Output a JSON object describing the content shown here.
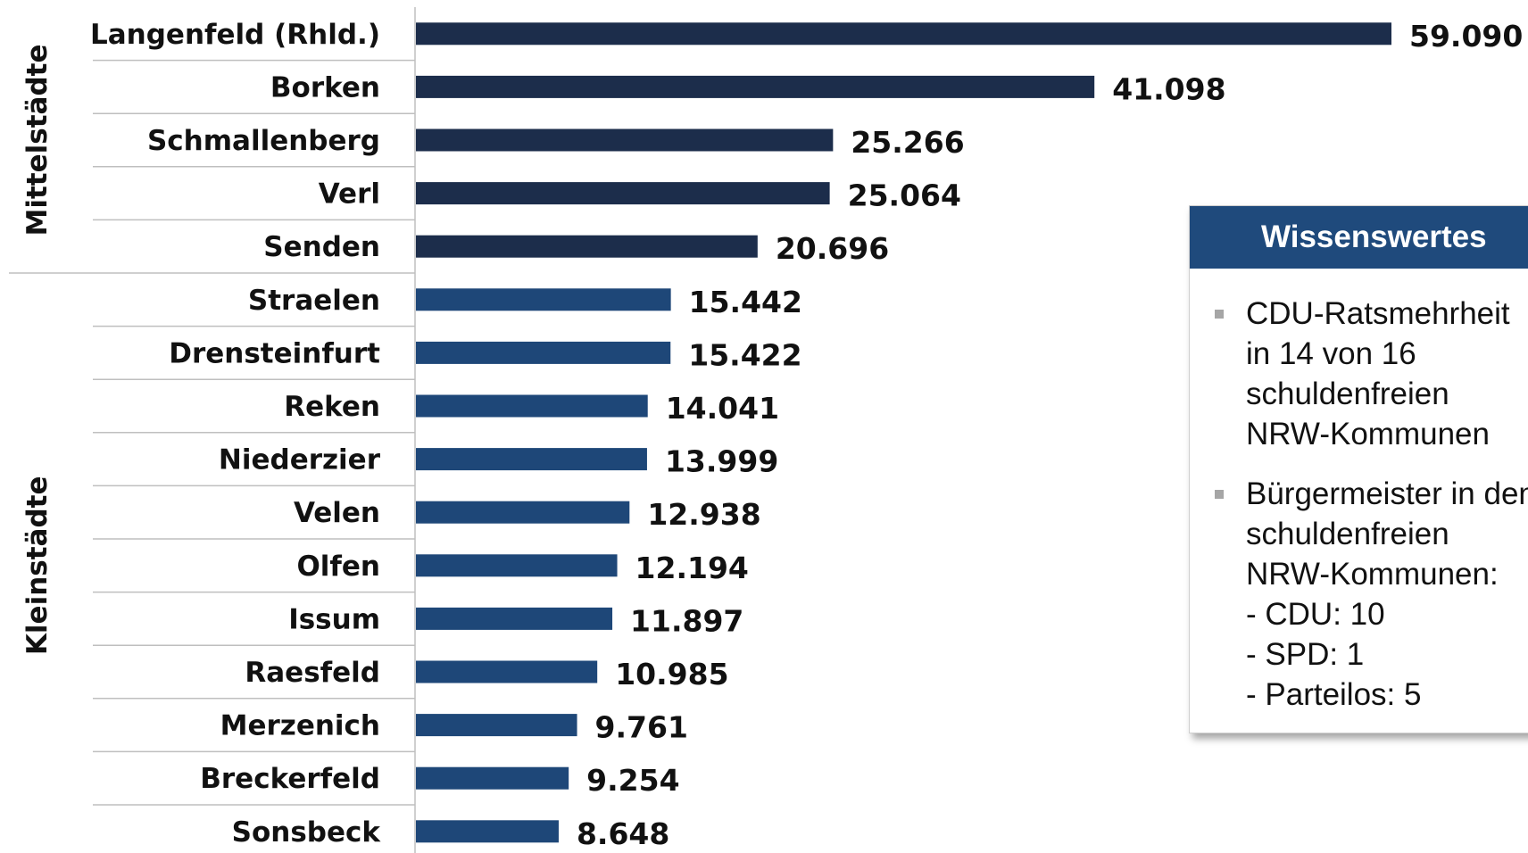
{
  "chart_data": {
    "type": "bar",
    "orientation": "horizontal",
    "categories": [
      "Langenfeld (Rhld.)",
      "Borken",
      "Schmallenberg",
      "Verl",
      "Senden",
      "Straelen",
      "Drensteinfurt",
      "Reken",
      "Niederzier",
      "Velen",
      "Olfen",
      "Issum",
      "Raesfeld",
      "Merzenich",
      "Breckerfeld",
      "Sonsbeck"
    ],
    "values": [
      59090,
      41098,
      25266,
      25064,
      20696,
      15442,
      15422,
      14041,
      13999,
      12938,
      12194,
      11897,
      10985,
      9761,
      9254,
      8648
    ],
    "value_labels": [
      "59.090",
      "41.098",
      "25.266",
      "25.064",
      "20.696",
      "15.442",
      "15.422",
      "14.041",
      "13.999",
      "12.938",
      "12.194",
      "11.897",
      "10.985",
      "9.761",
      "9.254",
      "8.648"
    ],
    "groups": [
      {
        "name": "Mittelstädte",
        "count": 5,
        "color": "#1c2d4b"
      },
      {
        "name": "Kleinstädte",
        "count": 11,
        "color": "#1e4778"
      }
    ],
    "title": "",
    "xlabel": "",
    "ylabel": "",
    "grid": false,
    "legend": "none"
  },
  "info_box": {
    "title": "Wissenswertes",
    "items": [
      {
        "lines": [
          "CDU-Ratsmehrheit",
          "in 14 von 16",
          "schuldenfreien",
          "NRW-Kommunen"
        ]
      },
      {
        "lines": [
          "Bürgermeister in den",
          "schuldenfreien",
          "NRW-Kommunen:",
          "- CDU: 10",
          "- SPD: 1",
          "- Parteilos: 5"
        ]
      }
    ]
  }
}
